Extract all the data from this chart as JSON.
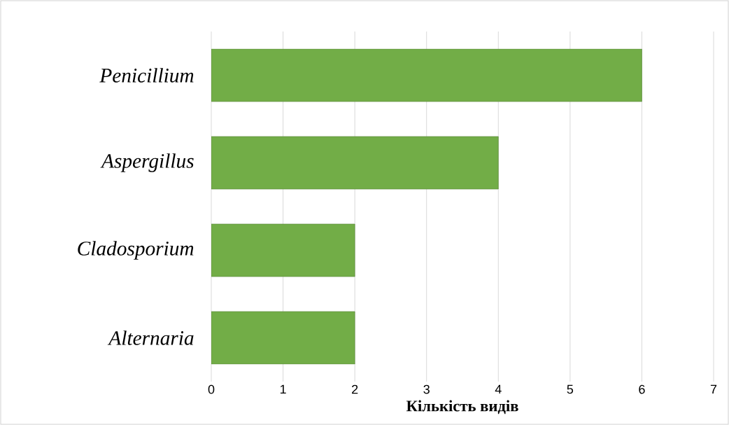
{
  "chart_data": {
    "type": "bar",
    "orientation": "horizontal",
    "categories": [
      "Penicillium",
      "Aspergillus",
      "Cladosporium",
      "Alternaria"
    ],
    "values": [
      6,
      4,
      2,
      2
    ],
    "color": "#72ad47",
    "xlabel": "Кількість видів",
    "xlim": [
      0,
      7
    ],
    "xticks": [
      0,
      1,
      2,
      3,
      4,
      5,
      6,
      7
    ],
    "grid": "x"
  }
}
